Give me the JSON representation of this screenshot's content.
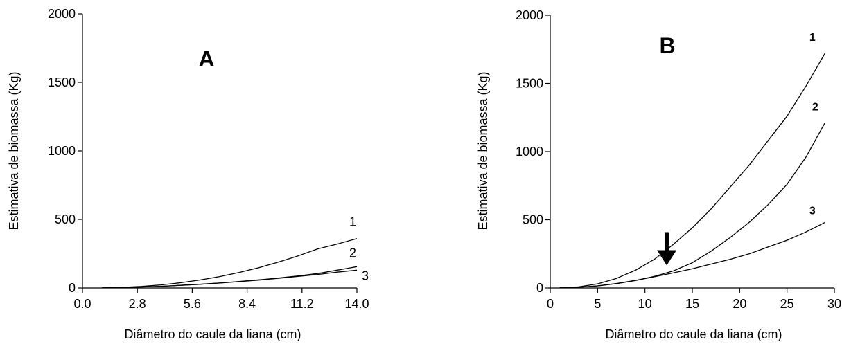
{
  "chart_data": [
    {
      "type": "line",
      "panel_label": "A",
      "xlabel": "Diâmetro do caule da liana (cm)",
      "ylabel": "Estimativa de biomassa (Kg)",
      "xlim": [
        0,
        14
      ],
      "ylim": [
        0,
        2000
      ],
      "xticks": [
        "0.0",
        "2.8",
        "5.6",
        "8.4",
        "11.2",
        "14.0"
      ],
      "xtick_values": [
        0,
        2.8,
        5.6,
        8.4,
        11.2,
        14.0
      ],
      "yticks": [
        "0",
        "500",
        "1000",
        "1500",
        "2000"
      ],
      "ytick_values": [
        0,
        500,
        1000,
        1500,
        2000
      ],
      "series": [
        {
          "name": "1",
          "x": [
            1,
            2,
            3,
            4,
            5,
            6,
            7,
            8,
            9,
            10,
            11,
            12,
            13,
            14
          ],
          "y": [
            1,
            4,
            11,
            22,
            38,
            58,
            83,
            113,
            148,
            189,
            234,
            285,
            320,
            360
          ]
        },
        {
          "name": "2",
          "x": [
            1,
            2,
            3,
            4,
            5,
            6,
            7,
            8,
            9,
            10,
            11,
            12,
            13,
            14
          ],
          "y": [
            1,
            3,
            7,
            12,
            19,
            27,
            36,
            47,
            59,
            72,
            88,
            105,
            130,
            155
          ]
        },
        {
          "name": "3",
          "x": [
            1,
            2,
            3,
            4,
            5,
            6,
            7,
            8,
            9,
            10,
            11,
            12,
            13,
            14
          ],
          "y": [
            1,
            3,
            7,
            12,
            19,
            27,
            36,
            46,
            57,
            70,
            84,
            98,
            115,
            130
          ]
        }
      ]
    },
    {
      "type": "line",
      "panel_label": "B",
      "xlabel": "Diâmetro do caule da liana (cm)",
      "ylabel": "Estimativa de biomassa (Kg)",
      "xlim": [
        0,
        30
      ],
      "ylim": [
        0,
        2000
      ],
      "xticks": [
        "0",
        "5",
        "10",
        "15",
        "20",
        "25",
        "30"
      ],
      "xtick_values": [
        0,
        5,
        10,
        15,
        20,
        25,
        30
      ],
      "yticks": [
        "0",
        "500",
        "1000",
        "1500",
        "2000"
      ],
      "ytick_values": [
        0,
        500,
        1000,
        1500,
        2000
      ],
      "arrow_x": 12.3,
      "series": [
        {
          "name": "1",
          "x": [
            1,
            3,
            5,
            7,
            9,
            11,
            13,
            15,
            17,
            19,
            21,
            23,
            25,
            27,
            29
          ],
          "y": [
            1,
            8,
            30,
            70,
            130,
            210,
            320,
            440,
            580,
            740,
            900,
            1080,
            1260,
            1480,
            1720
          ]
        },
        {
          "name": "2",
          "x": [
            1,
            3,
            5,
            7,
            9,
            11,
            13,
            15,
            17,
            19,
            21,
            23,
            25,
            27,
            29
          ],
          "y": [
            1,
            5,
            15,
            32,
            55,
            85,
            125,
            185,
            270,
            370,
            480,
            610,
            760,
            960,
            1210
          ]
        },
        {
          "name": "3",
          "x": [
            1,
            3,
            5,
            7,
            9,
            11,
            13,
            15,
            17,
            19,
            21,
            23,
            25,
            27,
            29
          ],
          "y": [
            1,
            5,
            15,
            32,
            55,
            82,
            110,
            140,
            175,
            210,
            250,
            300,
            350,
            410,
            480
          ]
        }
      ]
    }
  ]
}
